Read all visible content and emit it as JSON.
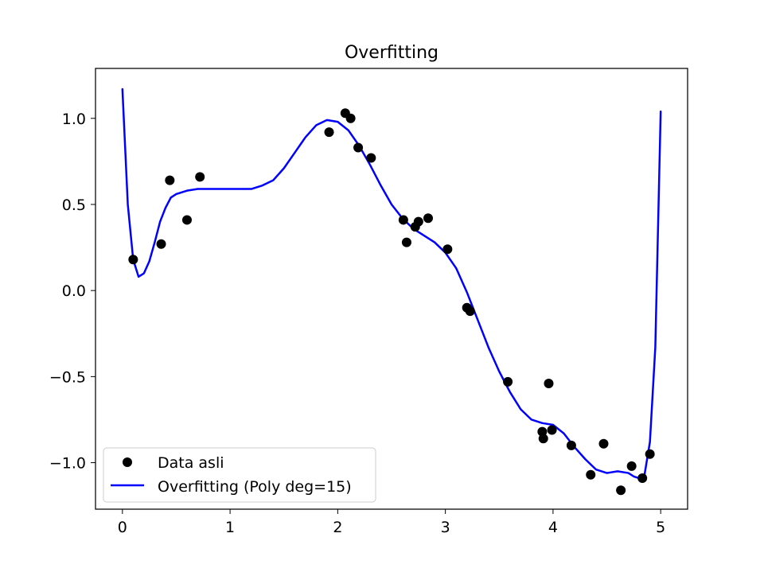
{
  "chart_data": {
    "type": "scatter",
    "title": "Overfitting",
    "xlabel": "",
    "ylabel": "",
    "xlim": [
      -0.25,
      5.25
    ],
    "ylim": [
      -1.27,
      1.29
    ],
    "xticks": [
      0,
      1,
      2,
      3,
      4,
      5
    ],
    "xtick_labels": [
      "0",
      "1",
      "2",
      "3",
      "4",
      "5"
    ],
    "yticks": [
      -1.0,
      -0.5,
      0.0,
      0.5,
      1.0
    ],
    "ytick_labels": [
      "−1.0",
      "−0.5",
      "0.0",
      "0.5",
      "1.0"
    ],
    "grid": false,
    "legend_position": "lower-left",
    "series": [
      {
        "name": "Data asli",
        "kind": "scatter",
        "color": "#000000",
        "points": [
          [
            0.1,
            0.18
          ],
          [
            0.36,
            0.27
          ],
          [
            0.44,
            0.64
          ],
          [
            0.6,
            0.41
          ],
          [
            0.72,
            0.66
          ],
          [
            1.92,
            0.92
          ],
          [
            2.07,
            1.03
          ],
          [
            2.12,
            1.0
          ],
          [
            2.19,
            0.83
          ],
          [
            2.31,
            0.77
          ],
          [
            2.61,
            0.41
          ],
          [
            2.64,
            0.28
          ],
          [
            2.72,
            0.37
          ],
          [
            2.75,
            0.4
          ],
          [
            2.84,
            0.42
          ],
          [
            3.02,
            0.24
          ],
          [
            3.2,
            -0.1
          ],
          [
            3.23,
            -0.12
          ],
          [
            3.58,
            -0.53
          ],
          [
            3.9,
            -0.82
          ],
          [
            3.91,
            -0.86
          ],
          [
            3.96,
            -0.54
          ],
          [
            3.99,
            -0.81
          ],
          [
            4.17,
            -0.9
          ],
          [
            4.35,
            -1.07
          ],
          [
            4.47,
            -0.89
          ],
          [
            4.63,
            -1.16
          ],
          [
            4.73,
            -1.02
          ],
          [
            4.83,
            -1.09
          ],
          [
            4.9,
            -0.95
          ]
        ]
      },
      {
        "name": "Overfitting (Poly deg=15)",
        "kind": "line",
        "color": "#0000ff",
        "points": [
          [
            0.0,
            1.17
          ],
          [
            0.05,
            0.5
          ],
          [
            0.1,
            0.18
          ],
          [
            0.15,
            0.08
          ],
          [
            0.2,
            0.1
          ],
          [
            0.25,
            0.17
          ],
          [
            0.3,
            0.28
          ],
          [
            0.35,
            0.4
          ],
          [
            0.4,
            0.48
          ],
          [
            0.45,
            0.54
          ],
          [
            0.5,
            0.56
          ],
          [
            0.6,
            0.58
          ],
          [
            0.7,
            0.59
          ],
          [
            0.8,
            0.59
          ],
          [
            0.9,
            0.59
          ],
          [
            1.0,
            0.59
          ],
          [
            1.1,
            0.59
          ],
          [
            1.2,
            0.59
          ],
          [
            1.3,
            0.61
          ],
          [
            1.4,
            0.64
          ],
          [
            1.5,
            0.71
          ],
          [
            1.6,
            0.8
          ],
          [
            1.7,
            0.89
          ],
          [
            1.8,
            0.96
          ],
          [
            1.9,
            0.99
          ],
          [
            2.0,
            0.98
          ],
          [
            2.1,
            0.93
          ],
          [
            2.2,
            0.84
          ],
          [
            2.3,
            0.73
          ],
          [
            2.4,
            0.61
          ],
          [
            2.5,
            0.5
          ],
          [
            2.6,
            0.42
          ],
          [
            2.7,
            0.36
          ],
          [
            2.8,
            0.32
          ],
          [
            2.9,
            0.28
          ],
          [
            3.0,
            0.22
          ],
          [
            3.1,
            0.13
          ],
          [
            3.2,
            -0.01
          ],
          [
            3.3,
            -0.17
          ],
          [
            3.4,
            -0.33
          ],
          [
            3.5,
            -0.47
          ],
          [
            3.6,
            -0.59
          ],
          [
            3.7,
            -0.69
          ],
          [
            3.8,
            -0.75
          ],
          [
            3.9,
            -0.77
          ],
          [
            4.0,
            -0.78
          ],
          [
            4.1,
            -0.83
          ],
          [
            4.2,
            -0.91
          ],
          [
            4.3,
            -0.98
          ],
          [
            4.4,
            -1.04
          ],
          [
            4.5,
            -1.06
          ],
          [
            4.6,
            -1.05
          ],
          [
            4.7,
            -1.06
          ],
          [
            4.75,
            -1.08
          ],
          [
            4.8,
            -1.09
          ],
          [
            4.85,
            -1.07
          ],
          [
            4.9,
            -0.88
          ],
          [
            4.95,
            -0.33
          ],
          [
            5.0,
            1.04
          ]
        ]
      }
    ]
  }
}
